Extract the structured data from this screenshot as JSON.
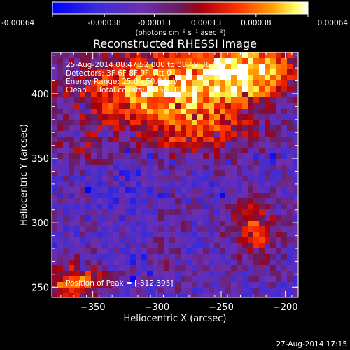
{
  "colorbar": {
    "ticks": [
      "-0.00064",
      "-0.00038",
      "-0.00013",
      "0.00013",
      "0.00038",
      "0.00064"
    ],
    "units": "(photons cm⁻² s⁻¹ asec⁻²)",
    "range": [
      -0.00064,
      0.00064
    ]
  },
  "chart_data": {
    "type": "heatmap",
    "title": "Reconstructed RHESSI Image",
    "xlabel": "Heliocentric X (arcsec)",
    "ylabel": "Heliocentric Y (arcsec)",
    "xlim": [
      -382,
      -190
    ],
    "ylim": [
      242,
      432
    ],
    "xticks": [
      {
        "value": -350,
        "label": "−350"
      },
      {
        "value": -300,
        "label": "−300"
      },
      {
        "value": -250,
        "label": "−250"
      },
      {
        "value": -200,
        "label": "−200"
      }
    ],
    "yticks": [
      {
        "value": 250,
        "label": "250"
      },
      {
        "value": 300,
        "label": "300"
      },
      {
        "value": 350,
        "label": "350"
      },
      {
        "value": 400,
        "label": "400"
      }
    ],
    "annotations": [
      "25-Aug-2014 08:47:52.000 to 08:49:36.000",
      "Detectors: 3F 6F 8F 9F, Att 0",
      "Energy Range: 25.0 - 50.0 keV",
      "Clean     Total counts: 1.16E+03"
    ],
    "peak_text": "Position of Peak = [-312,395]",
    "peak": {
      "x": -312,
      "y": 395
    },
    "colormap": "blue-purple-red-orange-yellow-white"
  },
  "footer": {
    "timestamp": "27-Aug-2014 17:15"
  }
}
